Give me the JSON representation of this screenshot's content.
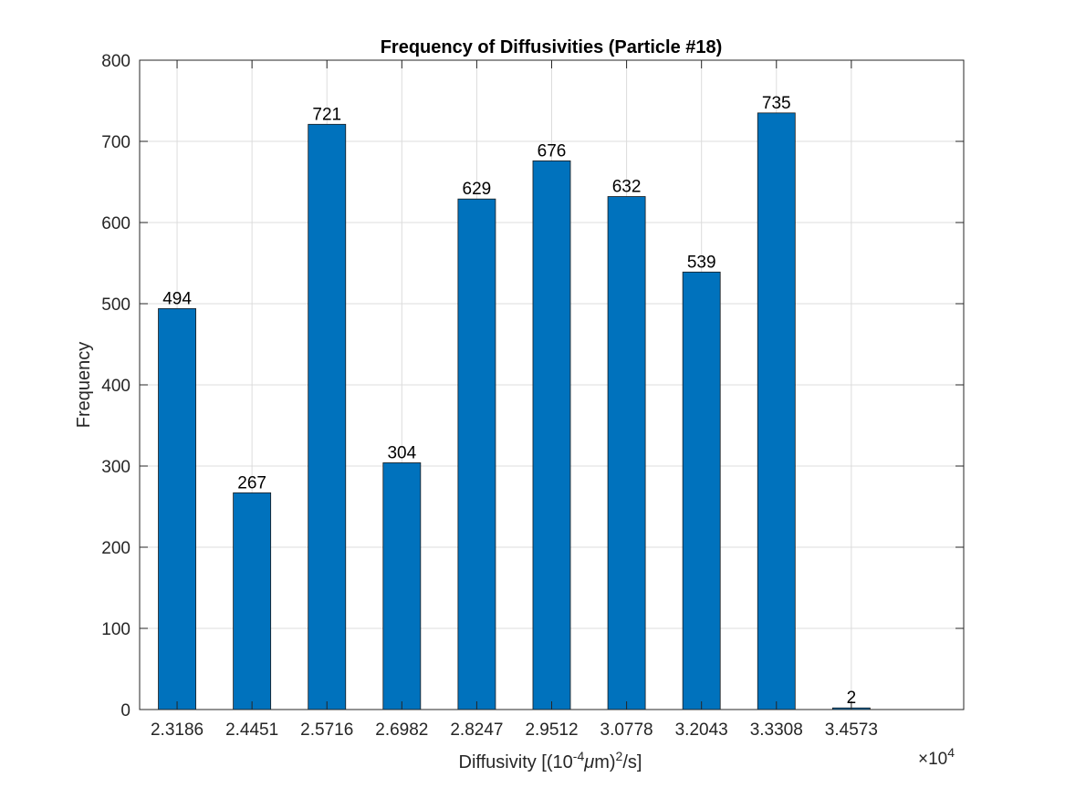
{
  "chart_data": {
    "type": "bar",
    "title": "Frequency of Diffusivities (Particle #18)",
    "xlabel": {
      "prefix": "Diffusivity [(10",
      "sup1": "-4",
      "mu": "μ",
      "mid": "m)",
      "sup2": "2",
      "suffix": "/s]"
    },
    "ylabel": "Frequency",
    "x_multiplier": {
      "base": "×10",
      "exponent": "4"
    },
    "categories": [
      "2.3186",
      "2.4451",
      "2.5716",
      "2.6982",
      "2.8247",
      "2.9512",
      "3.0778",
      "3.2043",
      "3.3308",
      "3.4573"
    ],
    "values": [
      494,
      267,
      721,
      304,
      629,
      676,
      632,
      539,
      735,
      2
    ],
    "ylim": [
      0,
      800
    ],
    "yticks": [
      0,
      100,
      200,
      300,
      400,
      500,
      600,
      700,
      800
    ],
    "grid": true,
    "bar_color": "#0072BD",
    "data_labels": true
  }
}
